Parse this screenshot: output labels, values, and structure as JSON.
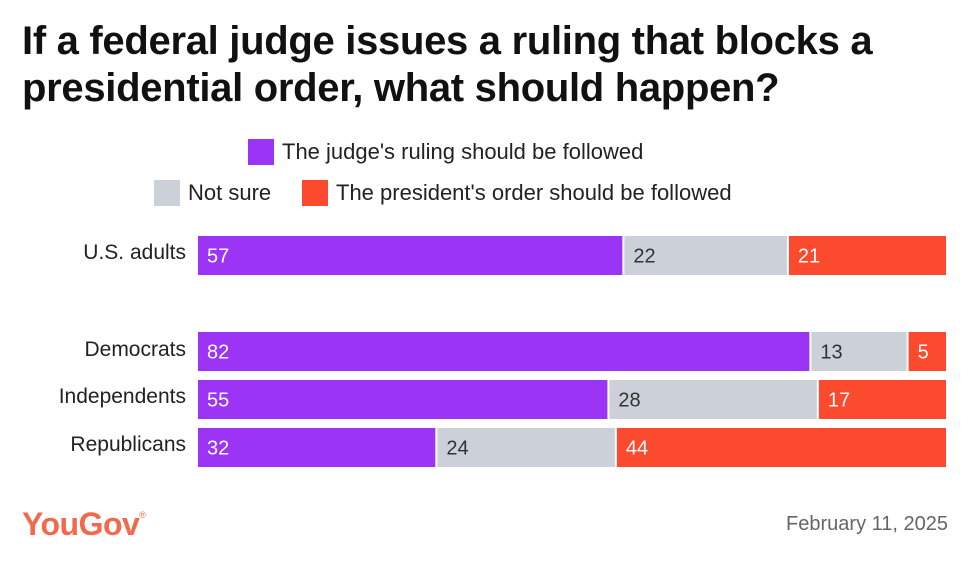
{
  "title": "If a federal judge issues a ruling that blocks a presidential order, what should happen?",
  "legend": [
    {
      "label": "The judge's ruling should be followed",
      "color": "#9b34f5"
    },
    {
      "label": "Not sure",
      "color": "#ccd0d9"
    },
    {
      "label": "The president's order should be followed",
      "color": "#fb4a2e"
    }
  ],
  "chart_data": {
    "type": "bar",
    "orientation": "horizontal",
    "stacked": true,
    "title": "If a federal judge issues a ruling that blocks a presidential order, what should happen?",
    "categories": [
      "U.S. adults",
      "Democrats",
      "Independents",
      "Republicans"
    ],
    "series": [
      {
        "name": "The judge's ruling should be followed",
        "color": "#9b34f5",
        "values": [
          57,
          82,
          55,
          32
        ]
      },
      {
        "name": "Not sure",
        "color": "#ccd0d9",
        "values": [
          22,
          13,
          28,
          24
        ]
      },
      {
        "name": "The president's order should be followed",
        "color": "#fb4a2e",
        "values": [
          21,
          5,
          17,
          44
        ]
      }
    ],
    "xlim": [
      0,
      100
    ],
    "xlabel": "",
    "ylabel": "",
    "grid": false,
    "legend_position": "top"
  },
  "footer": {
    "brand": "YouGov",
    "registered_mark": "®",
    "date": "February 11, 2025"
  }
}
